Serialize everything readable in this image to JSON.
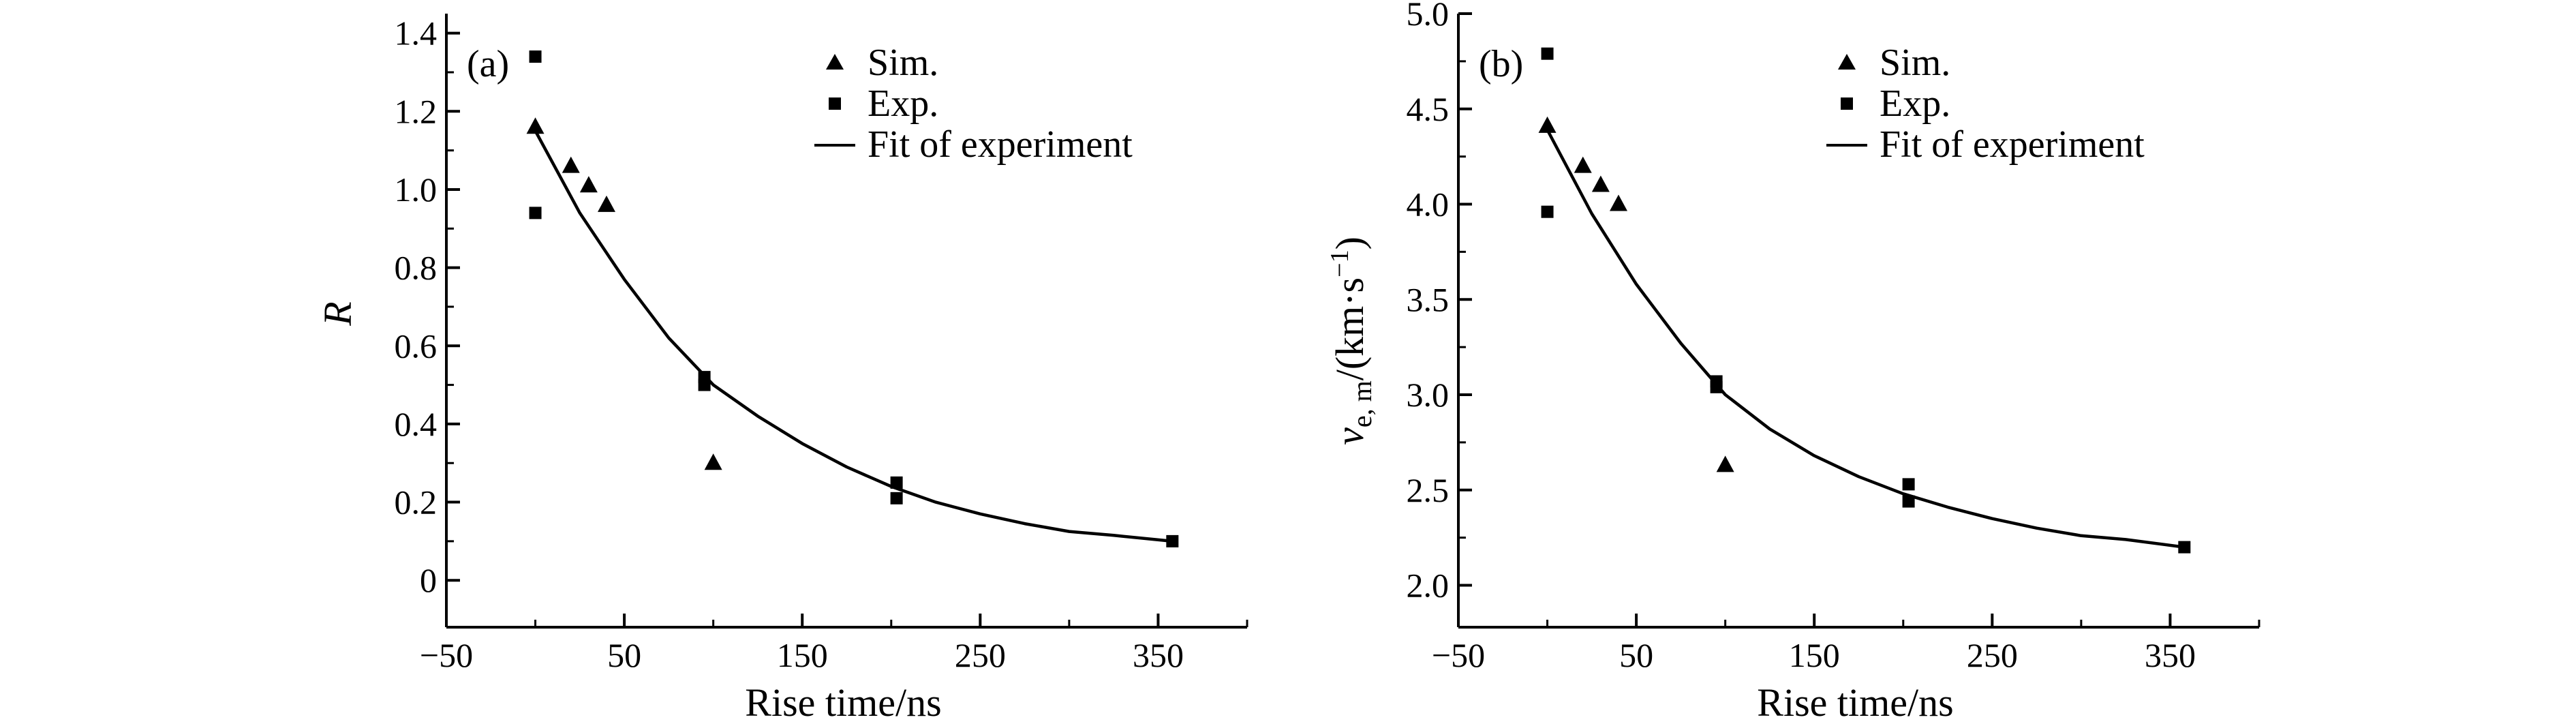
{
  "chart_data": [
    {
      "type": "scatter",
      "panel_label": "(a)",
      "xlabel": "Rise time/ns",
      "ylabel": "R",
      "xlim": [
        -50,
        400
      ],
      "ylim": [
        -0.12,
        1.45
      ],
      "x_ticks": [
        -50,
        50,
        150,
        250,
        350
      ],
      "x_tick_labels": [
        "−50",
        "50",
        "150",
        "250",
        "350"
      ],
      "y_ticks": [
        0,
        0.2,
        0.4,
        0.6,
        0.8,
        1.0,
        1.2,
        1.4
      ],
      "y_tick_labels": [
        "0",
        "0.2",
        "0.4",
        "0.6",
        "0.8",
        "1.0",
        "1.2",
        "1.4"
      ],
      "legend": {
        "position": "top-right",
        "entries": [
          "Sim.",
          "Exp.",
          "Fit of experiment"
        ]
      },
      "series": [
        {
          "name": "Sim.",
          "marker": "triangle",
          "x": [
            0,
            20,
            30,
            40,
            100
          ],
          "y": [
            1.16,
            1.06,
            1.01,
            0.96,
            0.3
          ]
        },
        {
          "name": "Exp.",
          "marker": "square",
          "x": [
            0,
            0,
            95,
            95,
            203,
            203,
            358
          ],
          "y": [
            1.34,
            0.94,
            0.52,
            0.5,
            0.25,
            0.21,
            0.1
          ]
        },
        {
          "name": "Fit of experiment",
          "marker": "line",
          "x": [
            0,
            25,
            50,
            75,
            100,
            125,
            150,
            175,
            200,
            225,
            250,
            275,
            300,
            325,
            358
          ],
          "y": [
            1.15,
            0.94,
            0.77,
            0.62,
            0.5,
            0.42,
            0.35,
            0.29,
            0.24,
            0.2,
            0.17,
            0.145,
            0.125,
            0.115,
            0.1
          ]
        }
      ]
    },
    {
      "type": "scatter",
      "panel_label": "(b)",
      "xlabel": "Rise time/ns",
      "ylabel_base": "v",
      "ylabel_sub": "e, m",
      "ylabel_units": "/(km·s",
      "ylabel_sup": "−1",
      "ylabel_close": ")",
      "xlim": [
        -50,
        400
      ],
      "ylim": [
        1.78,
        5.0
      ],
      "x_ticks": [
        -50,
        50,
        150,
        250,
        350
      ],
      "x_tick_labels": [
        "−50",
        "50",
        "150",
        "250",
        "350"
      ],
      "y_ticks": [
        2.0,
        2.5,
        3.0,
        3.5,
        4.0,
        4.5,
        5.0
      ],
      "y_tick_labels": [
        "2.0",
        "2.5",
        "3.0",
        "3.5",
        "4.0",
        "4.5",
        "5.0"
      ],
      "legend": {
        "position": "top-right",
        "entries": [
          "Sim.",
          "Exp.",
          "Fit of experiment"
        ]
      },
      "series": [
        {
          "name": "Sim.",
          "marker": "triangle",
          "x": [
            0,
            20,
            30,
            40,
            100
          ],
          "y": [
            4.41,
            4.2,
            4.1,
            4.0,
            2.63
          ]
        },
        {
          "name": "Exp.",
          "marker": "square",
          "x": [
            0,
            0,
            95,
            95,
            203,
            203,
            358
          ],
          "y": [
            4.79,
            3.96,
            3.07,
            3.04,
            2.53,
            2.44,
            2.2
          ]
        },
        {
          "name": "Fit of experiment",
          "marker": "line",
          "x": [
            0,
            25,
            50,
            75,
            100,
            125,
            150,
            175,
            200,
            225,
            250,
            275,
            300,
            325,
            358
          ],
          "y": [
            4.39,
            3.95,
            3.58,
            3.27,
            3.0,
            2.82,
            2.68,
            2.57,
            2.48,
            2.41,
            2.35,
            2.3,
            2.26,
            2.24,
            2.2
          ]
        }
      ]
    }
  ]
}
